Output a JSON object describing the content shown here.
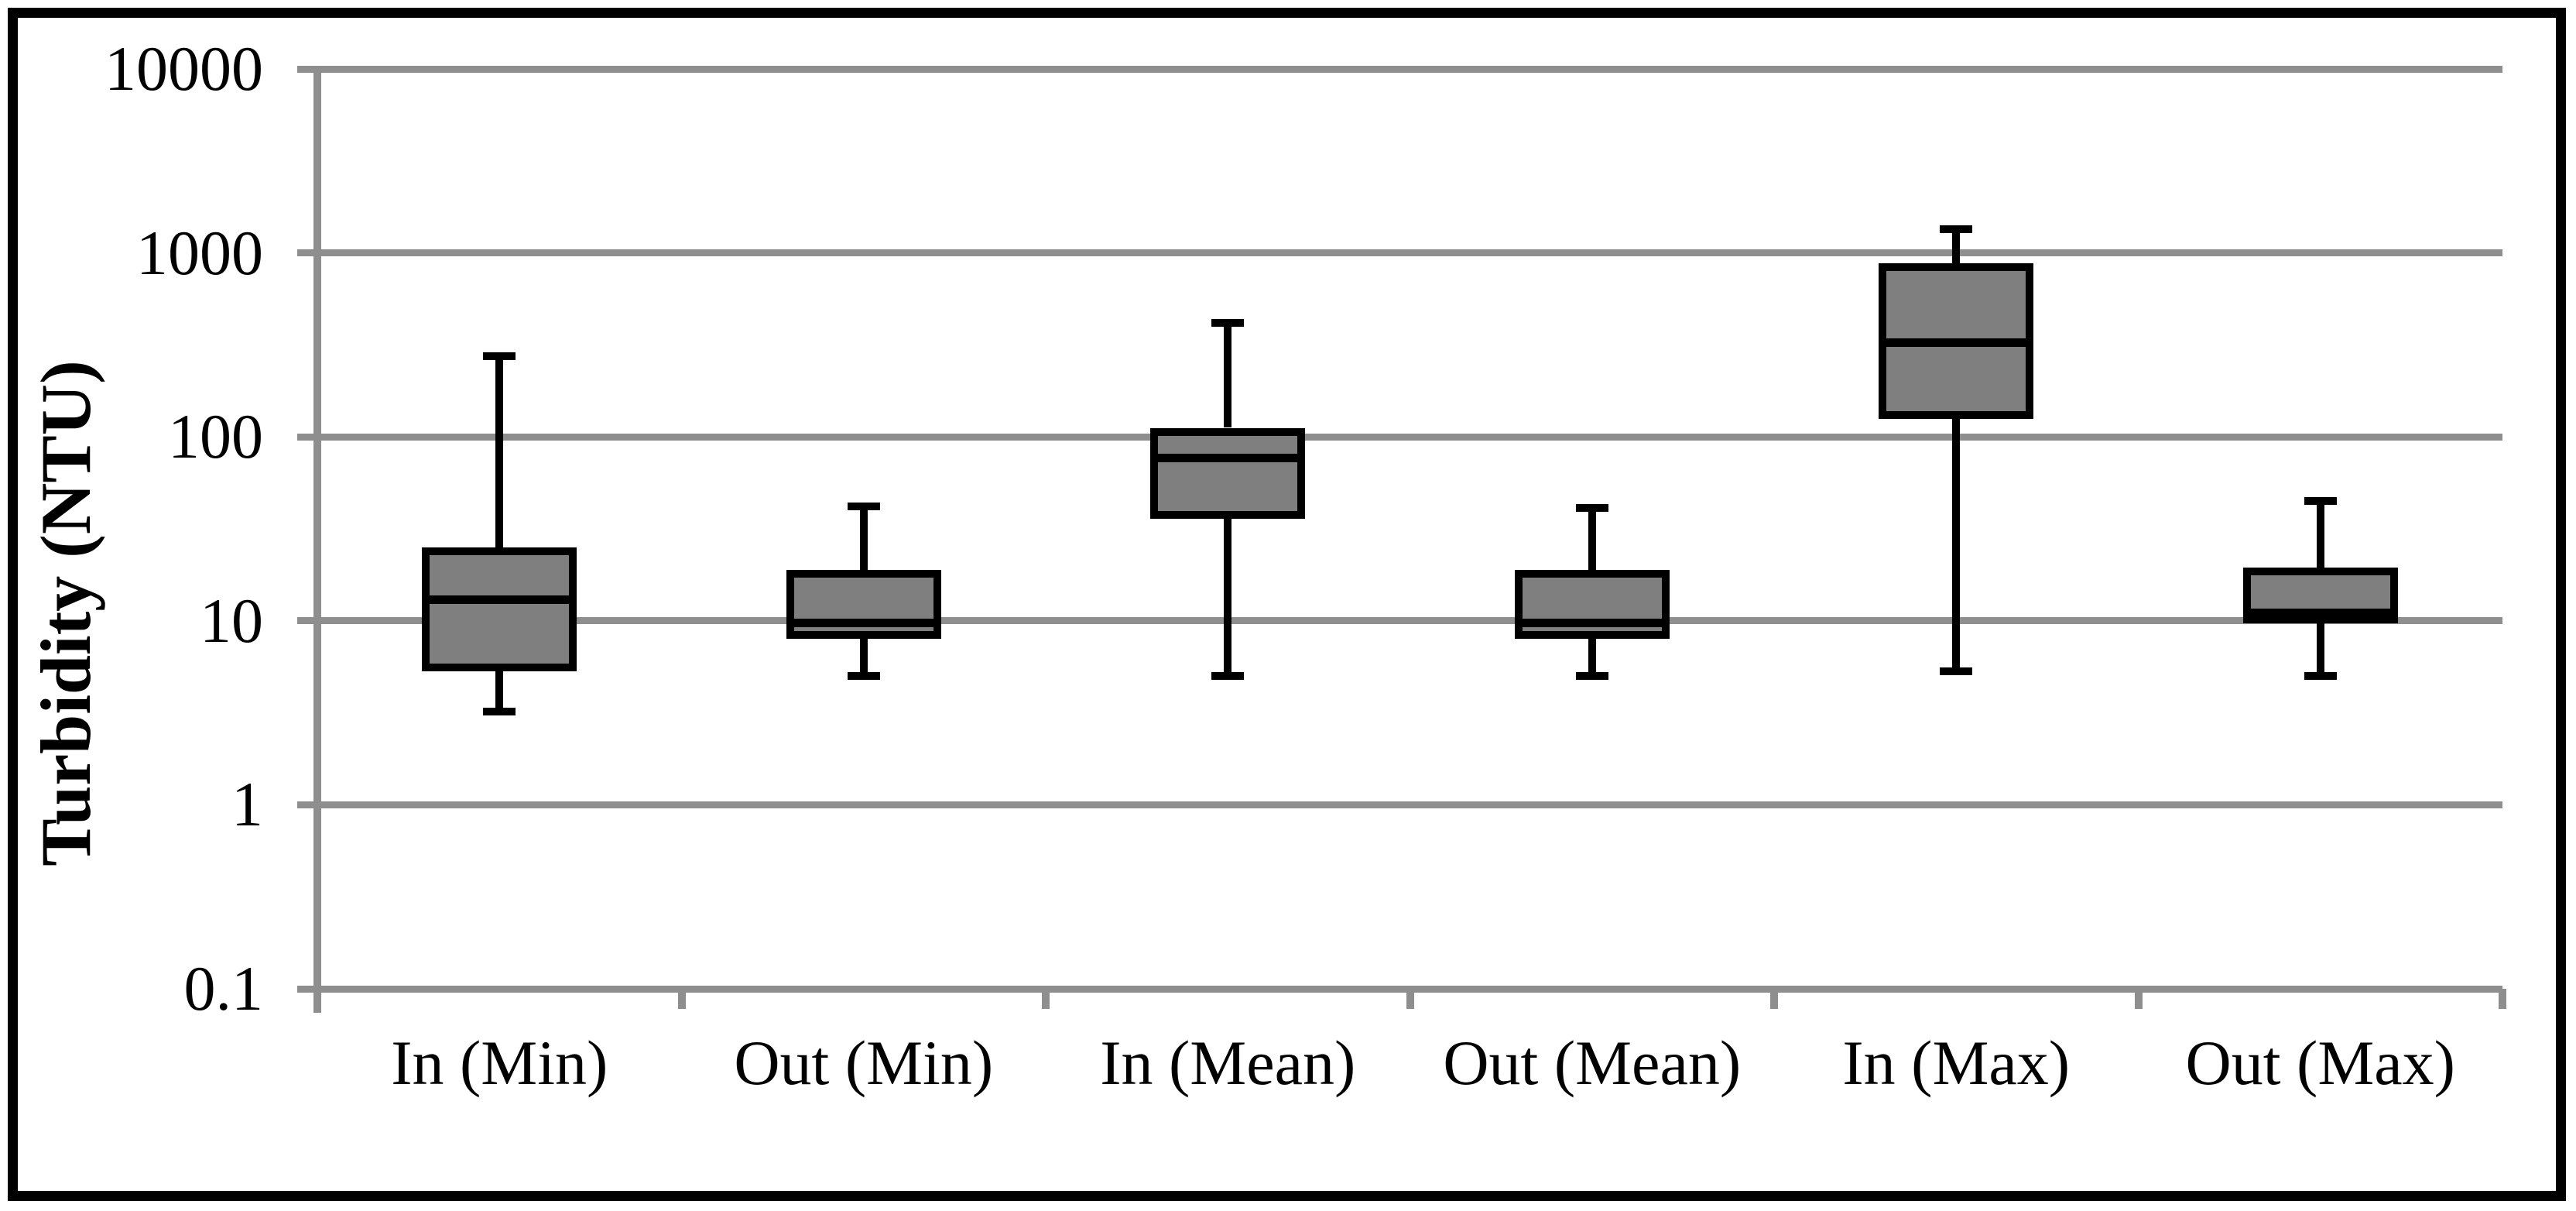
{
  "figure": {
    "background": "#ffffff",
    "border_color": "#000000"
  },
  "chart_data": {
    "type": "box",
    "title": "",
    "xlabel": "",
    "ylabel": "Turbidity (NTU)",
    "y_scale": "log",
    "ylim": [
      0.1,
      10000
    ],
    "y_ticks": [
      "10000",
      "1000",
      "100",
      "10",
      "1",
      "0.1"
    ],
    "grid": "horizontal",
    "legend": "none",
    "categories": [
      "In (Min)",
      "Out (Min)",
      "In (Mean)",
      "Out (Mean)",
      "In (Max)",
      "Out (Max)"
    ],
    "series": [
      {
        "name": "In (Min)",
        "min": 3.2,
        "q1": 5.3,
        "median": 13,
        "q3": 25,
        "max": 275
      },
      {
        "name": "Out (Min)",
        "min": 5,
        "q1": 8,
        "median": 9.7,
        "q3": 19,
        "max": 42
      },
      {
        "name": "In (Mean)",
        "min": 5,
        "q1": 36,
        "median": 77,
        "q3": 112,
        "max": 415
      },
      {
        "name": "Out (Mean)",
        "min": 5,
        "q1": 8,
        "median": 9.7,
        "q3": 19,
        "max": 41
      },
      {
        "name": "In (Max)",
        "min": 5.3,
        "q1": 125,
        "median": 325,
        "q3": 880,
        "max": 1350
      },
      {
        "name": "Out (Max)",
        "min": 5,
        "q1": 9.7,
        "median": 11,
        "q3": 19.5,
        "max": 45
      }
    ],
    "colors": {
      "box_fill": "#7f7f7f",
      "box_border": "#000000",
      "whisker": "#000000",
      "median": "#000000",
      "gridline": "#8e8e8e",
      "axis": "#8e8e8e",
      "text": "#000000"
    }
  }
}
